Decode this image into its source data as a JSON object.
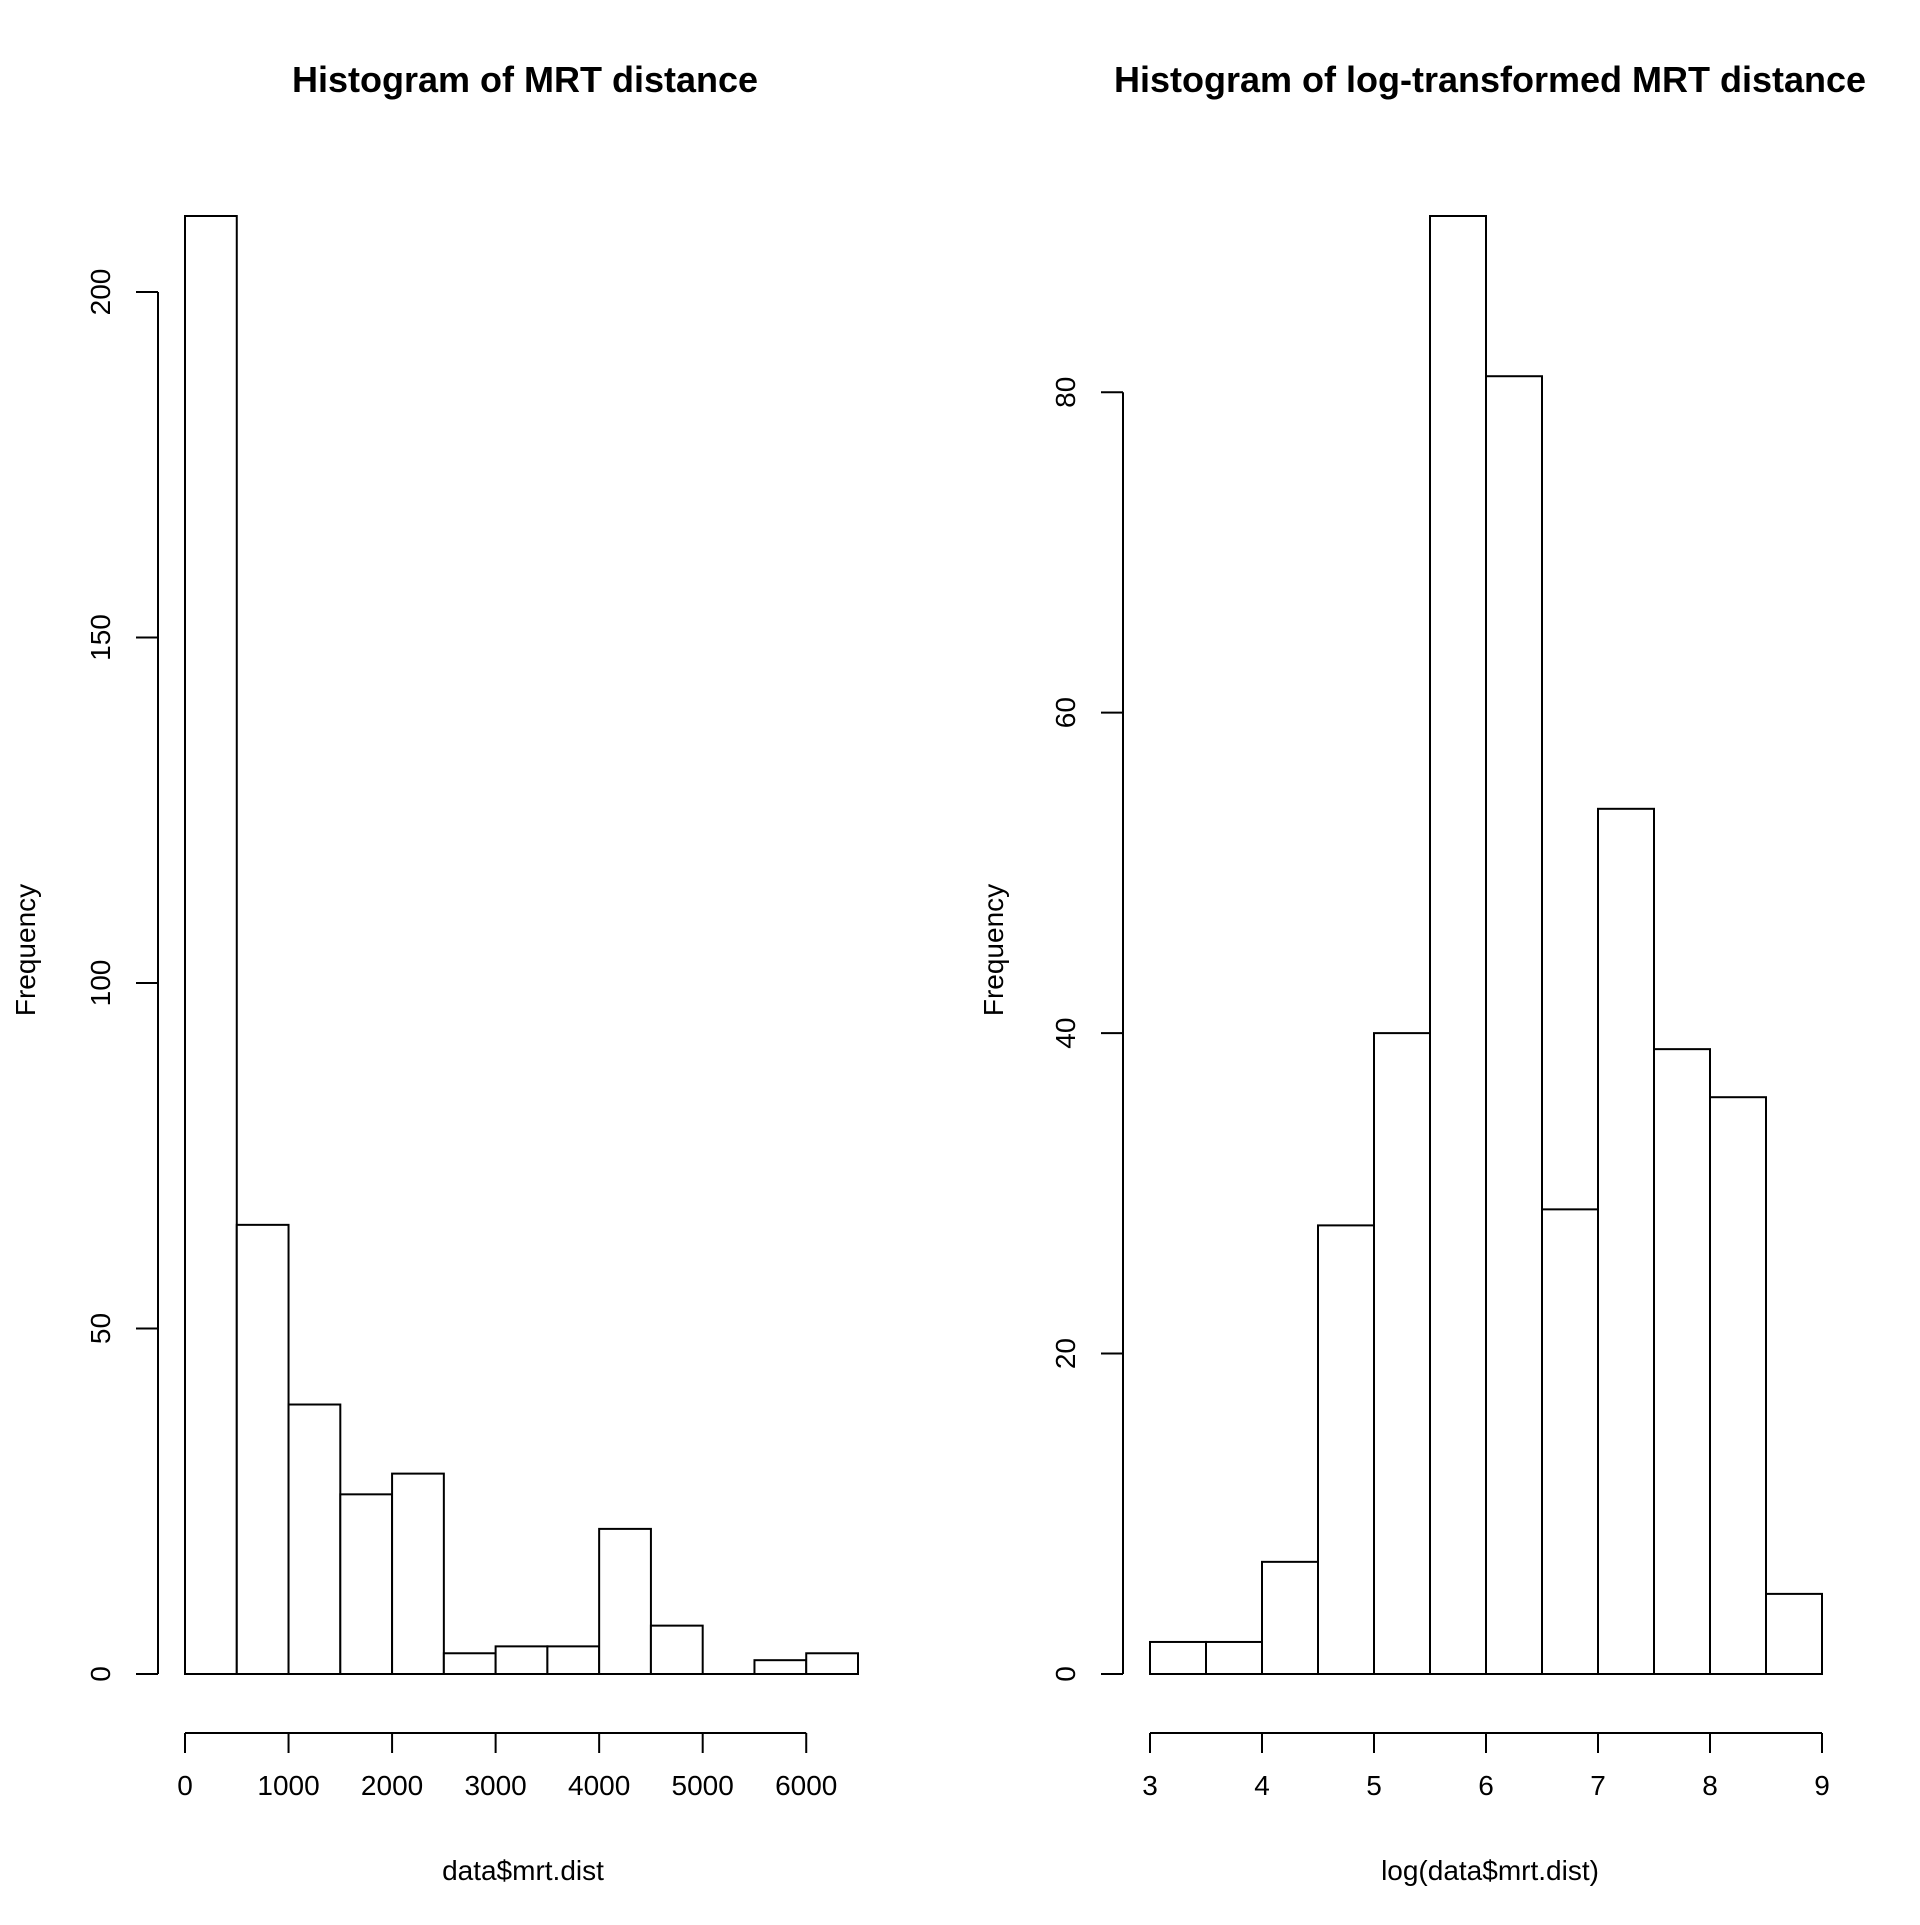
{
  "chart_data": [
    {
      "type": "bar",
      "title": "Histogram of MRT distance",
      "xlabel": "data$mrt.dist",
      "ylabel": "Frequency",
      "bin_edges": [
        0,
        500,
        1000,
        1500,
        2000,
        2500,
        3000,
        3500,
        4000,
        4500,
        5000,
        5500,
        6000,
        6500
      ],
      "values": [
        211,
        65,
        39,
        26,
        29,
        3,
        4,
        4,
        21,
        7,
        0,
        2,
        3
      ],
      "xticks": [
        0,
        1000,
        2000,
        3000,
        4000,
        5000,
        6000
      ],
      "yticks": [
        0,
        50,
        100,
        150,
        200
      ],
      "xlim": [
        0,
        6500
      ],
      "ylim": [
        0,
        211
      ],
      "grid": false,
      "legend": "none"
    },
    {
      "type": "bar",
      "title": "Histogram of log-transformed MRT distance",
      "xlabel": "log(data$mrt.dist)",
      "ylabel": "Frequency",
      "bin_edges": [
        3,
        3.5,
        4,
        4.5,
        5,
        5.5,
        6,
        6.5,
        7,
        7.5,
        8,
        8.5,
        9
      ],
      "values": [
        2,
        2,
        7,
        28,
        40,
        91,
        81,
        29,
        54,
        39,
        36,
        5
      ],
      "xticks": [
        3,
        4,
        5,
        6,
        7,
        8,
        9
      ],
      "yticks": [
        0,
        20,
        40,
        60,
        80
      ],
      "xlim": [
        3,
        9
      ],
      "ylim": [
        0,
        91
      ],
      "grid": false,
      "legend": "none"
    }
  ]
}
